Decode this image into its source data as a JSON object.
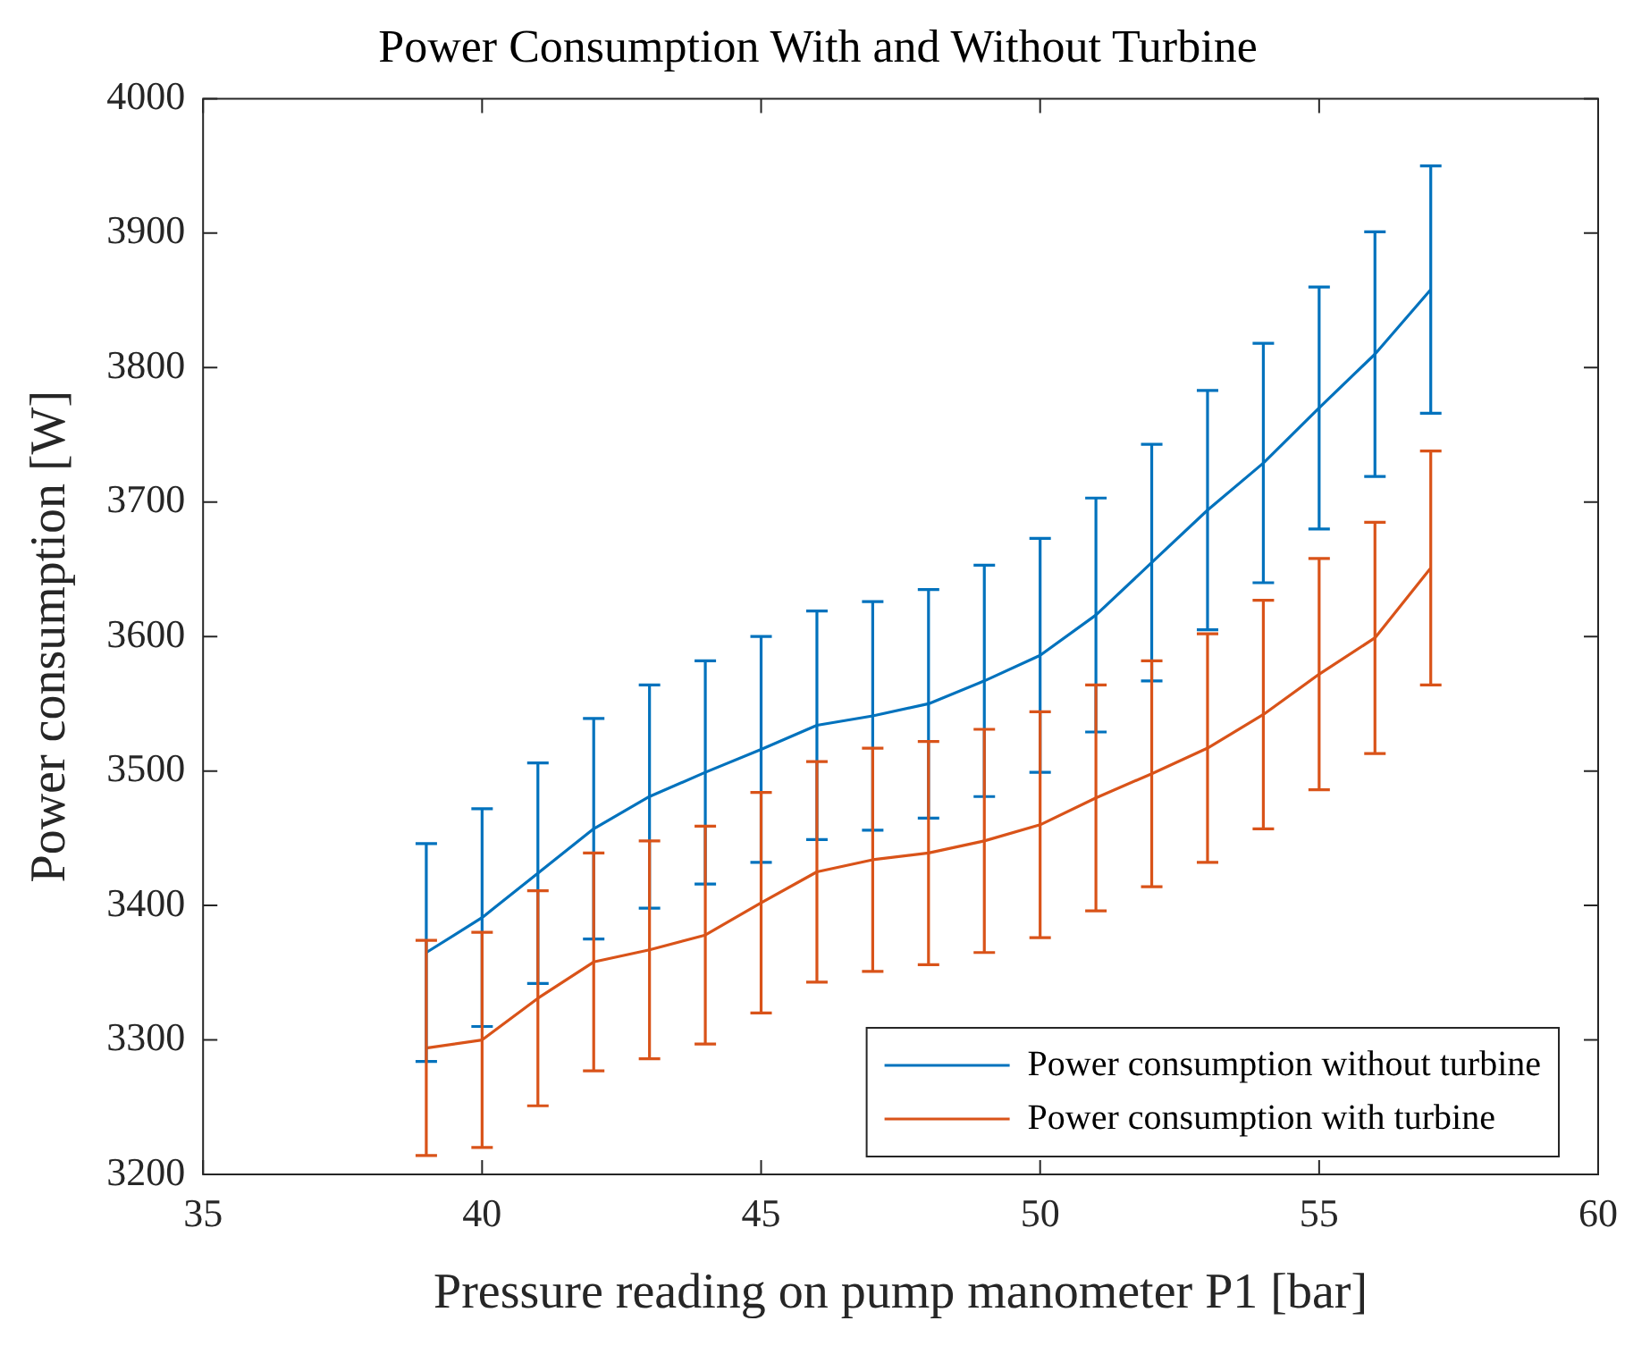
{
  "chart_data": {
    "type": "line",
    "title": "Power Consumption With and Without Turbine",
    "xlabel": "Pressure reading on pump manometer P1 [bar]",
    "ylabel": "Power consumption [W]",
    "x": [
      39,
      40,
      41,
      42,
      43,
      44,
      45,
      46,
      47,
      48,
      49,
      50,
      51,
      52,
      53,
      54,
      55,
      56,
      57
    ],
    "series": [
      {
        "name": "Power consumption without turbine",
        "color": "#0072bd",
        "values": [
          3365,
          3391,
          3424,
          3457,
          3481,
          3499,
          3516,
          3534,
          3541,
          3550,
          3567,
          3586,
          3616,
          3655,
          3694,
          3729,
          3770,
          3810,
          3858
        ],
        "errors": [
          81,
          81,
          82,
          82,
          83,
          83,
          84,
          85,
          85,
          85,
          86,
          87,
          87,
          88,
          89,
          89,
          90,
          91,
          92
        ]
      },
      {
        "name": "Power consumption with turbine",
        "color": "#d95319",
        "values": [
          3294,
          3300,
          3331,
          3358,
          3367,
          3378,
          3402,
          3425,
          3434,
          3439,
          3448,
          3460,
          3480,
          3498,
          3517,
          3542,
          3572,
          3599,
          3651
        ],
        "errors": [
          80,
          80,
          80,
          81,
          81,
          81,
          82,
          82,
          83,
          83,
          83,
          84,
          84,
          84,
          85,
          85,
          86,
          86,
          87
        ]
      }
    ],
    "xlim": [
      35,
      60
    ],
    "xticks": [
      35,
      40,
      45,
      50,
      55,
      60
    ],
    "ylim": [
      3200,
      4000
    ],
    "yticks": [
      3200,
      3300,
      3400,
      3500,
      3600,
      3700,
      3800,
      3900,
      4000
    ],
    "grid": false,
    "legend": "bottom right",
    "marker": "none",
    "line_style": "solid"
  }
}
